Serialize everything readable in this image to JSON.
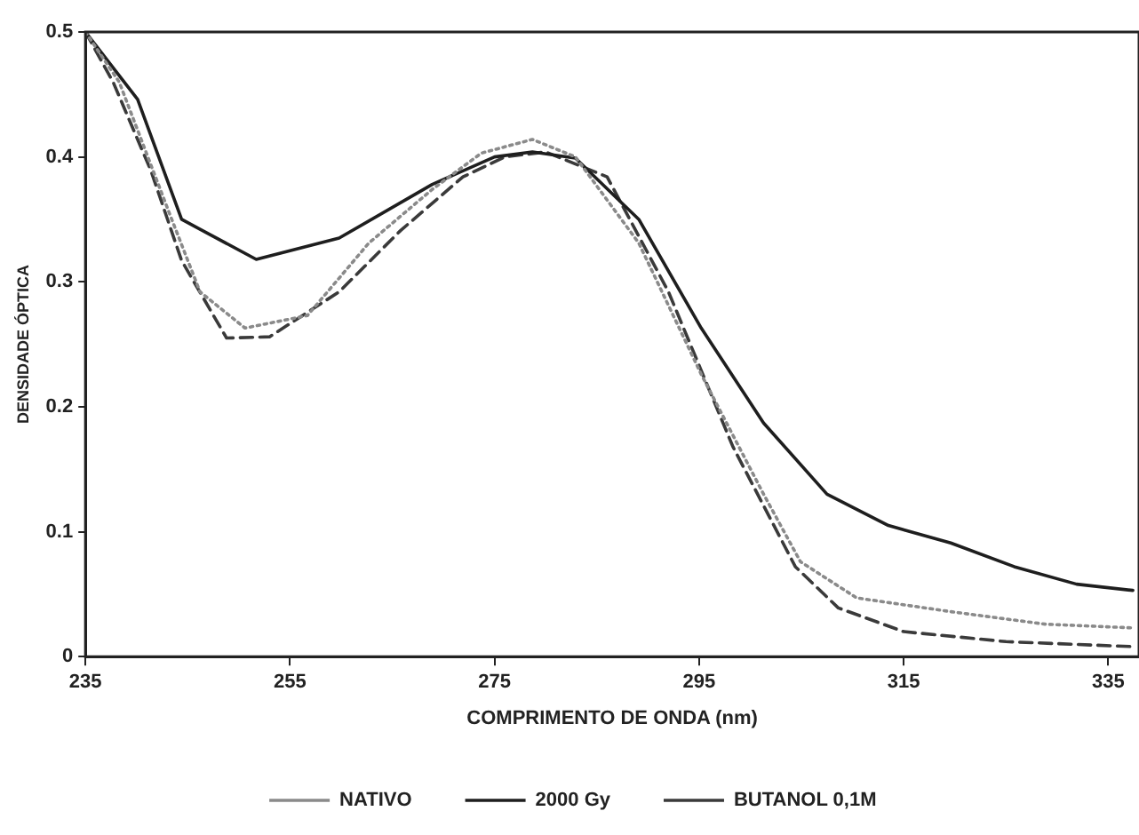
{
  "chart_data": {
    "type": "line",
    "xlabel": "COMPRIMENTO DE ONDA (nm)",
    "ylabel": "DENSIDADE ÓPTICA",
    "xlim": [
      235,
      338
    ],
    "xticks": [
      235,
      255,
      275,
      295,
      315,
      335
    ],
    "ylim": [
      0,
      0.5
    ],
    "yticks": [
      0,
      0.1,
      0.2,
      0.3,
      0.4,
      0.5
    ],
    "grid": false,
    "legend": "bottom",
    "marker": "none",
    "series": [
      {
        "name": "NATIVO",
        "color": "#8a8a8a",
        "line_style": "dotted",
        "x": [
          235,
          238.3,
          243.2,
          246.2,
          250.6,
          256.7,
          262.7,
          268.9,
          273.7,
          278.7,
          282.9,
          289.1,
          295.2,
          301.3,
          304.9,
          310.4,
          319.6,
          328.8,
          337.4
        ],
        "values": [
          0.5,
          0.46,
          0.355,
          0.292,
          0.263,
          0.273,
          0.331,
          0.374,
          0.403,
          0.414,
          0.4,
          0.331,
          0.226,
          0.13,
          0.076,
          0.047,
          0.036,
          0.026,
          0.023
        ]
      },
      {
        "name": "2000 Gy",
        "color": "#1e1e1e",
        "line_style": "solid",
        "x": [
          235,
          240.1,
          244.4,
          251.7,
          259.8,
          268.9,
          275,
          278.7,
          282.9,
          289.1,
          295.2,
          301.3,
          307.5,
          313.5,
          319.6,
          325.8,
          331.9,
          337.4
        ],
        "values": [
          0.5,
          0.446,
          0.35,
          0.318,
          0.335,
          0.378,
          0.4,
          0.404,
          0.399,
          0.35,
          0.263,
          0.187,
          0.13,
          0.105,
          0.091,
          0.072,
          0.058,
          0.053
        ]
      },
      {
        "name": "BUTANOL 0,1M",
        "color": "#3a3a3a",
        "line_style": "dashed",
        "x": [
          235,
          237.7,
          241.4,
          244.4,
          248.8,
          253,
          259.8,
          265.8,
          271.9,
          276,
          280,
          286,
          292,
          298.3,
          304.4,
          308.6,
          315,
          325,
          337.4
        ],
        "values": [
          0.5,
          0.46,
          0.389,
          0.317,
          0.255,
          0.256,
          0.292,
          0.341,
          0.384,
          0.4,
          0.404,
          0.384,
          0.292,
          0.168,
          0.072,
          0.039,
          0.02,
          0.012,
          0.008
        ]
      }
    ]
  }
}
